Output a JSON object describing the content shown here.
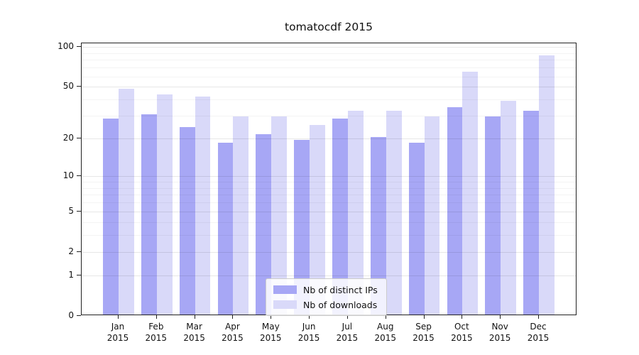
{
  "title": "tomatocdf 2015",
  "chart_data": {
    "type": "bar",
    "title": "tomatocdf 2015",
    "categories": [
      "Jan",
      "Feb",
      "Mar",
      "Apr",
      "May",
      "Jun",
      "Jul",
      "Aug",
      "Sep",
      "Oct",
      "Nov",
      "Dec"
    ],
    "category_year": "2015",
    "series": [
      {
        "name": "Nb of distinct IPs",
        "color": "#a7a7f5",
        "values": [
          28,
          30,
          24,
          18,
          21,
          19,
          28,
          20,
          18,
          34,
          29,
          32
        ]
      },
      {
        "name": "Nb of downloads",
        "color": "#d9d9f9",
        "values": [
          47,
          43,
          41,
          29,
          29,
          25,
          32,
          32,
          29,
          64,
          38,
          85
        ]
      }
    ],
    "xlabel": "",
    "ylabel": "",
    "y_scale": "log1p",
    "ylim": [
      0,
      107
    ],
    "y_axis_major_ticks": [
      0,
      1,
      2,
      5,
      10,
      20,
      50,
      100
    ],
    "y_axis_minor_gridlines": [
      3,
      4,
      6,
      7,
      8,
      9,
      30,
      40,
      60,
      70,
      80,
      90
    ],
    "grid": true,
    "legend_position": "lower center"
  }
}
